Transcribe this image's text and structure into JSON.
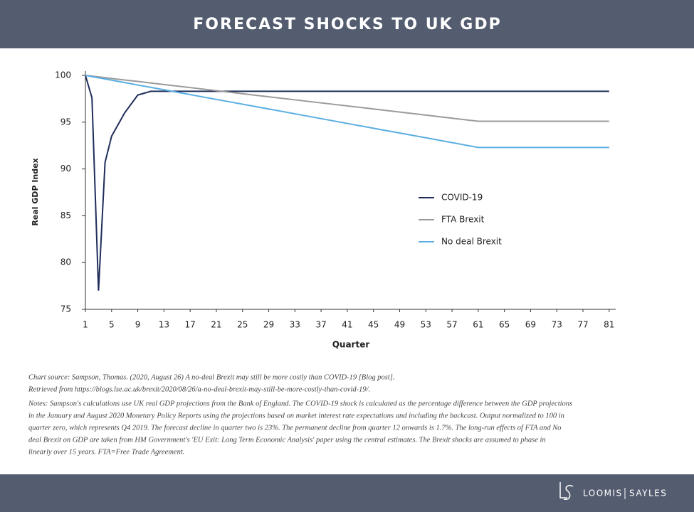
{
  "chart_data": {
    "type": "line",
    "title": "FORECAST SHOCKS TO UK GDP",
    "xlabel": "Quarter",
    "ylabel": "Real GDP Index",
    "x": [
      1,
      2,
      3,
      4,
      5,
      7,
      9,
      11,
      13,
      21,
      29,
      37,
      45,
      53,
      61,
      69,
      77,
      81
    ],
    "series": [
      {
        "name": "COVID-19",
        "color": "#1f2d5a",
        "values": [
          100,
          97.6,
          77,
          90.7,
          93.5,
          96,
          97.9,
          98.3,
          98.3,
          98.3,
          98.3,
          98.3,
          98.3,
          98.3,
          98.3,
          98.3,
          98.3,
          98.3
        ]
      },
      {
        "name": "FTA Brexit",
        "color": "#9b9b9b",
        "values": [
          100,
          99.92,
          99.84,
          99.76,
          99.67,
          99.51,
          99.35,
          99.18,
          99.02,
          98.37,
          97.71,
          97.06,
          96.41,
          95.75,
          95.1,
          95.1,
          95.1,
          95.1
        ]
      },
      {
        "name": "No deal Brexit",
        "color": "#5aaee2",
        "values": [
          100,
          99.87,
          99.74,
          99.62,
          99.49,
          99.23,
          98.97,
          98.72,
          98.46,
          97.43,
          96.41,
          95.38,
          94.35,
          93.33,
          92.3,
          92.3,
          92.3,
          92.3
        ]
      }
    ],
    "xlim": [
      1,
      82
    ],
    "xticks": [
      1,
      5,
      9,
      13,
      17,
      21,
      25,
      29,
      33,
      37,
      41,
      45,
      49,
      53,
      57,
      61,
      65,
      69,
      73,
      77,
      81
    ],
    "ylim": [
      75,
      100
    ],
    "yticks": [
      75,
      80,
      85,
      90,
      95,
      100
    ],
    "grid": false,
    "legend": "center-right",
    "source": [
      "Chart source: Sampson, Thomas. (2020, August 26) A no-deal Brexit may still be more costly than COVID-19 [Blog post].",
      "Retrieved from https://blogs.lse.ac.uk/brexit/2020/08/26/a-no-deal-brexit-may-still-be-more-costly-than-covid-19/."
    ],
    "notes": [
      "Notes: Sampson's calculations use UK real GDP projections from the Bank of England. The COVID-19 shock is calculated as the percentage difference between the GDP projections",
      "in the January and August 2020 Monetary Policy Reports using the projections based on market interest rate expectations and including the backcast. Output normalized to 100 in",
      "quarter zero, which represents Q4 2019. The forecast decline in quarter two is 23%. The permanent decline from quarter 12 onwards is 1.7%. The long-run effects of FTA and No",
      "deal Brexit on GDP are taken from HM Government's 'EU Exit: Long Term Economic Analysis' paper using the central estimates. The Brexit shocks are assumed to phase in",
      "linearly over 15 years. FTA=Free Trade Agreement."
    ]
  },
  "footer": {
    "brand_left": "LOOMIS",
    "brand_right": "SAYLES"
  }
}
